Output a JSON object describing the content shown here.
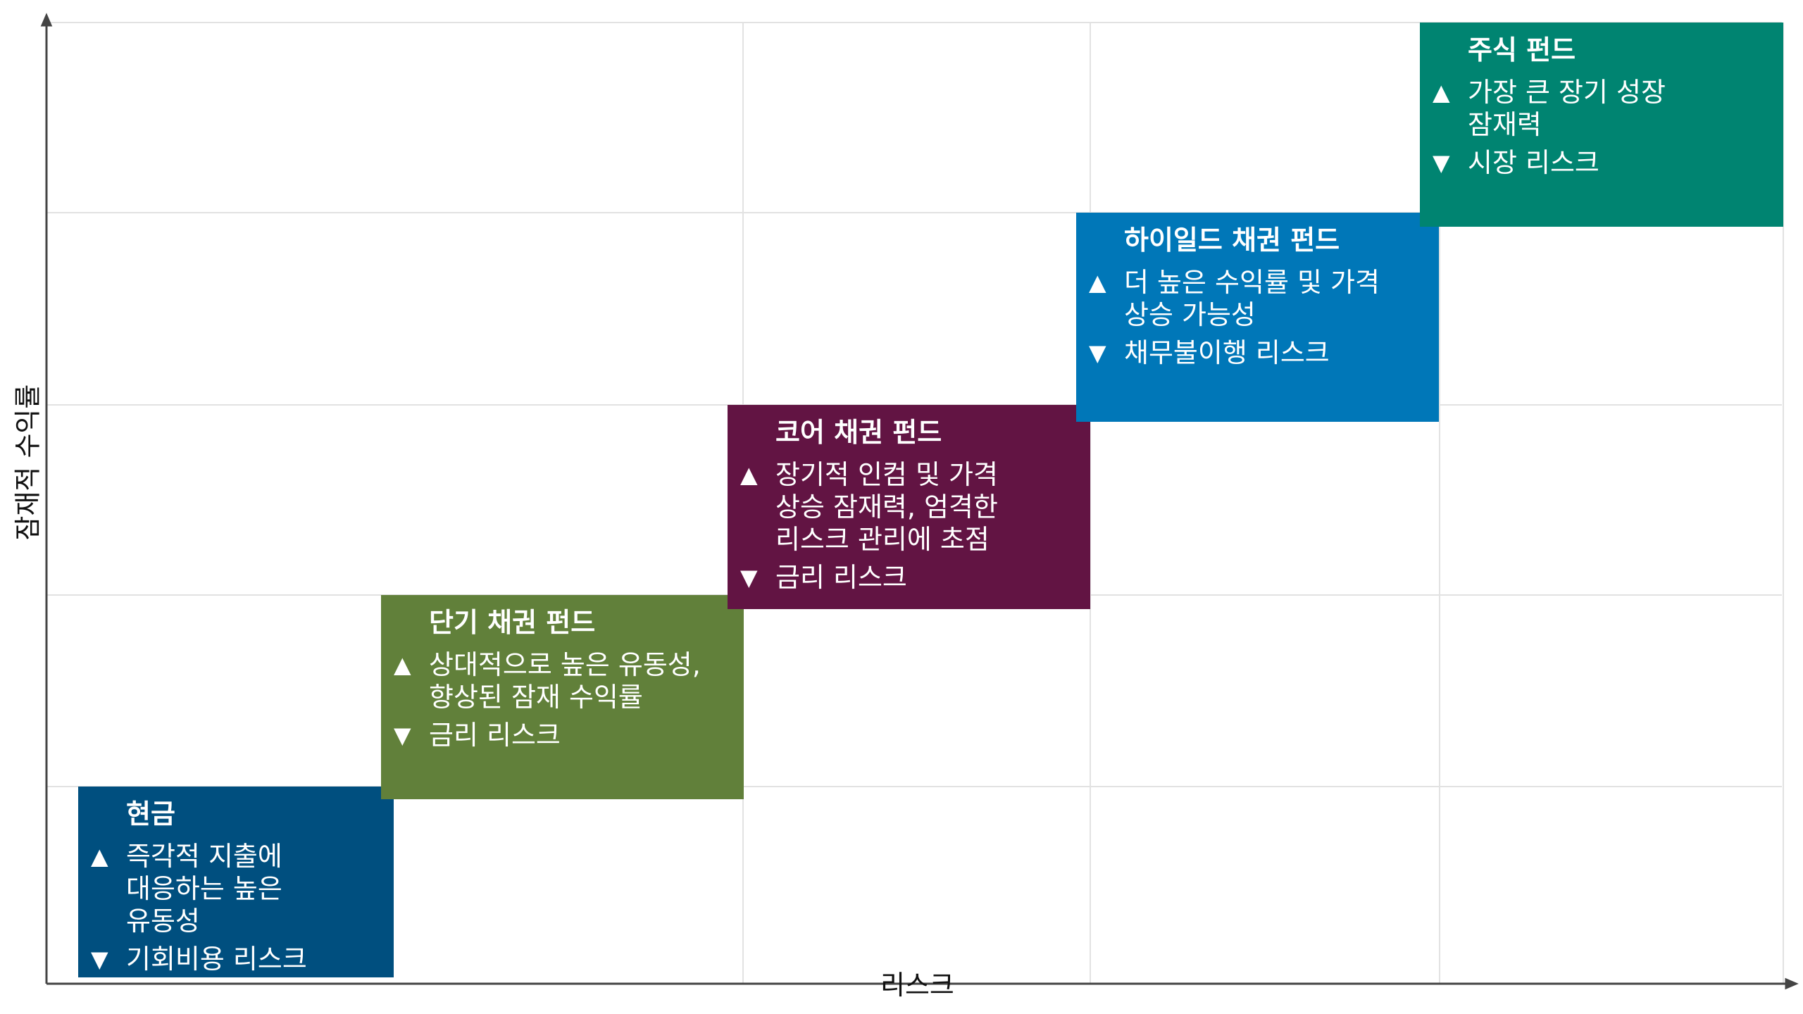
{
  "axes": {
    "x_title": "리스크",
    "y_title": "잠재적 수익률"
  },
  "colors": {
    "grid": "#e2e2e2",
    "axis": "#444444",
    "cash": "#004f7f",
    "short_bond": "#61803a",
    "core_bond": "#621443",
    "high_yield": "#0077b8",
    "equity": "#008471"
  },
  "cards": [
    {
      "id": "cash",
      "title": "현금",
      "up_icon": "triangle-up-icon",
      "down_icon": "triangle-down-icon",
      "up_glyph": "▲",
      "down_glyph": "▼",
      "up": "즉각적 지출에\n대응하는 높은\n유동성",
      "down": "기회비용 리스크"
    },
    {
      "id": "short_bond",
      "title": "단기 채권 펀드",
      "up_glyph": "▲",
      "down_glyph": "▼",
      "up": "상대적으로 높은 유동성,\n향상된 잠재 수익률",
      "down": "금리 리스크"
    },
    {
      "id": "core_bond",
      "title": "코어 채권 펀드",
      "up_glyph": "▲",
      "down_glyph": "▼",
      "up": "장기적 인컴 및 가격\n상승 잠재력, 엄격한\n리스크 관리에 초점",
      "down": "금리 리스크"
    },
    {
      "id": "high_yield",
      "title": "하이일드 채권 펀드",
      "up_glyph": "▲",
      "down_glyph": "▼",
      "up": "더 높은 수익률 및 가격\n상승 가능성",
      "down": "채무불이행 리스크"
    },
    {
      "id": "equity",
      "title": "주식 펀드",
      "up_glyph": "▲",
      "down_glyph": "▼",
      "up": "가장 큰 장기 성장\n잠재력",
      "down": "시장 리스크"
    }
  ]
}
